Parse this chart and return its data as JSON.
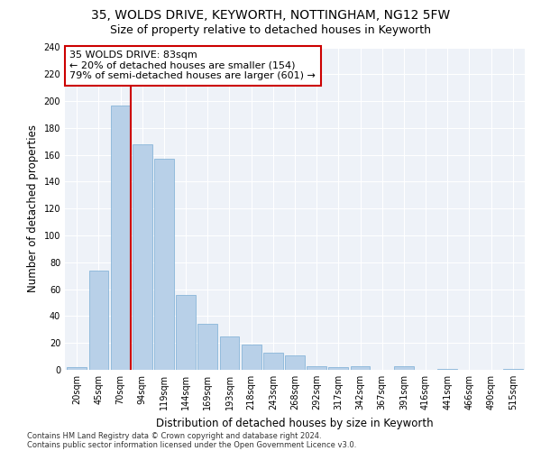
{
  "title1": "35, WOLDS DRIVE, KEYWORTH, NOTTINGHAM, NG12 5FW",
  "title2": "Size of property relative to detached houses in Keyworth",
  "xlabel": "Distribution of detached houses by size in Keyworth",
  "ylabel": "Number of detached properties",
  "categories": [
    "20sqm",
    "45sqm",
    "70sqm",
    "94sqm",
    "119sqm",
    "144sqm",
    "169sqm",
    "193sqm",
    "218sqm",
    "243sqm",
    "268sqm",
    "292sqm",
    "317sqm",
    "342sqm",
    "367sqm",
    "391sqm",
    "416sqm",
    "441sqm",
    "466sqm",
    "490sqm",
    "515sqm"
  ],
  "values": [
    2,
    74,
    197,
    168,
    157,
    56,
    34,
    25,
    19,
    13,
    11,
    3,
    2,
    3,
    0,
    3,
    0,
    1,
    0,
    0,
    1
  ],
  "bar_color": "#b8d0e8",
  "bar_edgecolor": "#7aadd4",
  "vline_color": "#cc0000",
  "annotation_line1": "35 WOLDS DRIVE: 83sqm",
  "annotation_line2": "← 20% of detached houses are smaller (154)",
  "annotation_line3": "79% of semi-detached houses are larger (601) →",
  "annotation_box_edgecolor": "#cc0000",
  "footer1": "Contains HM Land Registry data © Crown copyright and database right 2024.",
  "footer2": "Contains public sector information licensed under the Open Government Licence v3.0.",
  "ylim": [
    0,
    240
  ],
  "yticks": [
    0,
    20,
    40,
    60,
    80,
    100,
    120,
    140,
    160,
    180,
    200,
    220,
    240
  ],
  "bg_color": "#eef2f8",
  "grid_color": "#ffffff",
  "fig_bg": "#ffffff",
  "title_fontsize": 10,
  "subtitle_fontsize": 9,
  "tick_fontsize": 7,
  "label_fontsize": 8.5,
  "annotation_fontsize": 8,
  "footer_fontsize": 6
}
